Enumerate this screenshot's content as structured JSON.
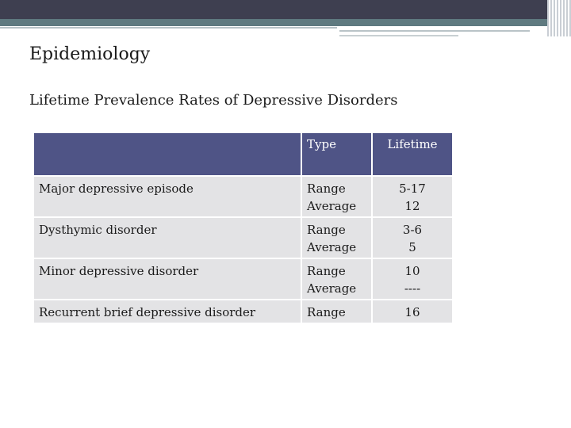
{
  "slide": {
    "title": "Epidemiology",
    "subtitle": "Lifetime Prevalence Rates of Depressive Disorders"
  },
  "table": {
    "headers": [
      "",
      "Type",
      "Lifetime"
    ],
    "rows": [
      {
        "disorder": "Major depressive episode",
        "type": [
          "Range",
          "Average"
        ],
        "lifetime": [
          "5-17",
          "12"
        ]
      },
      {
        "disorder": "Dysthymic disorder",
        "type": [
          "Range",
          "Average"
        ],
        "lifetime": [
          "3-6",
          "5"
        ]
      },
      {
        "disorder": "Minor depressive disorder",
        "type": [
          "Range",
          "Average"
        ],
        "lifetime": [
          "10",
          "----"
        ]
      },
      {
        "disorder": "Recurrent brief depressive disorder",
        "type": [
          "Range"
        ],
        "lifetime": [
          "16"
        ]
      }
    ]
  },
  "colors": {
    "header_bg": "#4f5486",
    "cell_bg": "#e3e3e5",
    "topbar": "#3e3f50",
    "accent_teal": "#5f7a80"
  }
}
